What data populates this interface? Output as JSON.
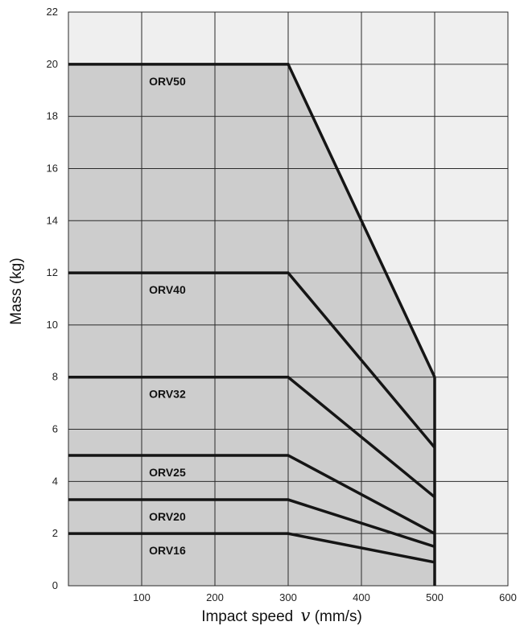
{
  "chart_data": {
    "type": "line",
    "xlabel": "Impact speed",
    "xlabel_symbol": "v",
    "xlabel_unit": "(mm/s)",
    "ylabel": "Mass (kg)",
    "xlim": [
      0,
      600
    ],
    "ylim": [
      0,
      22
    ],
    "xticks": [
      100,
      200,
      300,
      400,
      500,
      600
    ],
    "yticks": [
      0,
      2,
      4,
      6,
      8,
      10,
      12,
      14,
      16,
      18,
      20,
      22
    ],
    "grid": true,
    "colors": {
      "panel": "#efefef",
      "fill": "#cdcdcd",
      "line": "#151515"
    },
    "series": [
      {
        "name": "ORV50",
        "x": [
          0,
          300,
          500
        ],
        "y": [
          20,
          20,
          8
        ]
      },
      {
        "name": "ORV40",
        "x": [
          0,
          300,
          500
        ],
        "y": [
          12,
          12,
          5.3
        ]
      },
      {
        "name": "ORV32",
        "x": [
          0,
          300,
          500
        ],
        "y": [
          8,
          8,
          3.4
        ]
      },
      {
        "name": "ORV25",
        "x": [
          0,
          300,
          500
        ],
        "y": [
          5,
          5,
          2
        ]
      },
      {
        "name": "ORV20",
        "x": [
          0,
          300,
          500
        ],
        "y": [
          3.3,
          3.3,
          1.5
        ]
      },
      {
        "name": "ORV16",
        "x": [
          0,
          300,
          500
        ],
        "y": [
          2,
          2,
          0.9
        ]
      }
    ],
    "vertical_line": {
      "x": 500,
      "y_range": [
        0,
        8
      ]
    }
  }
}
